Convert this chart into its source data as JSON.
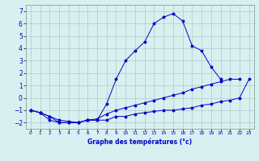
{
  "xlabel": "Graphe des températures (°c)",
  "hours": [
    0,
    1,
    2,
    3,
    4,
    5,
    6,
    7,
    8,
    9,
    10,
    11,
    12,
    13,
    14,
    15,
    16,
    17,
    18,
    19,
    20,
    21,
    22,
    23
  ],
  "main_temps": [
    -1.0,
    -1.2,
    -1.5,
    -2.0,
    -2.0,
    -2.0,
    -1.8,
    -1.8,
    -0.5,
    1.5,
    3.0,
    3.8,
    4.5,
    6.0,
    6.5,
    6.8,
    6.2,
    4.2,
    3.8,
    2.5,
    1.5,
    null,
    null,
    null
  ],
  "mean_temps": [
    -1.0,
    -1.2,
    -1.5,
    -1.8,
    -1.9,
    -2.0,
    -1.8,
    -1.7,
    -1.3,
    -1.0,
    -0.8,
    -0.6,
    -0.4,
    -0.2,
    0.0,
    0.2,
    0.4,
    0.7,
    0.9,
    1.1,
    1.3,
    1.5,
    1.5,
    null
  ],
  "min_temps": [
    -1.0,
    -1.2,
    -1.8,
    -2.0,
    -2.0,
    -2.0,
    -1.8,
    -1.8,
    -1.8,
    -1.5,
    -1.5,
    -1.3,
    -1.2,
    -1.1,
    -1.0,
    -1.0,
    -0.9,
    -0.8,
    -0.6,
    -0.5,
    -0.3,
    -0.2,
    0.0,
    1.5
  ],
  "line_color": "#0000cc",
  "bg_color": "#d8f0f0",
  "grid_color": "#b0c8c8",
  "ylim": [
    -2.5,
    7.5
  ],
  "yticks": [
    -2,
    -1,
    0,
    1,
    2,
    3,
    4,
    5,
    6,
    7
  ],
  "xlim": [
    -0.5,
    23.5
  ],
  "xticks": [
    0,
    1,
    2,
    3,
    4,
    5,
    6,
    7,
    8,
    9,
    10,
    11,
    12,
    13,
    14,
    15,
    16,
    17,
    18,
    19,
    20,
    21,
    22,
    23
  ]
}
